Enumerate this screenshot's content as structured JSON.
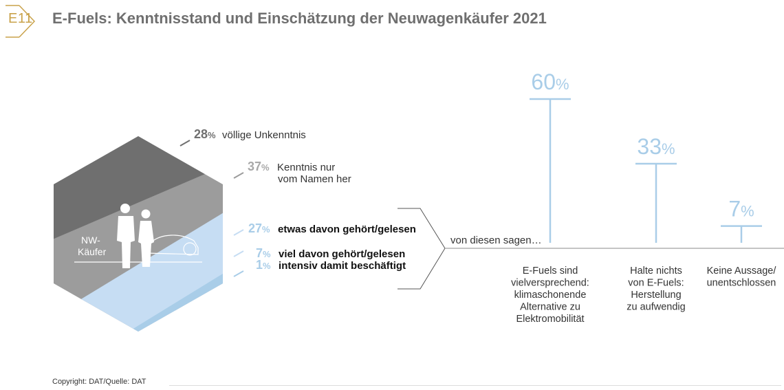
{
  "header": {
    "tag": "E11",
    "title": "E-Fuels: Kenntnisstand und Einschätzung der Neuwagenkäufer 2021"
  },
  "hexagon": {
    "label_line1": "NW-",
    "label_line2": "Käufer"
  },
  "connector_label": "von diesen sagen…",
  "footer": {
    "copyright": "Copyright: DAT/Quelle: DAT"
  },
  "colors": {
    "dark_grey": "#6f6f6f",
    "mid_grey": "#9c9c9c",
    "light_blue": "#c6ddf3",
    "blue": "#a9cde8",
    "gold": "#c9a24a"
  },
  "chart_data": [
    {
      "type": "table",
      "title": "",
      "segments": [
        {
          "value": "28",
          "unit": "%",
          "label_lines": [
            "völlige Unkenntnis"
          ]
        },
        {
          "value": "37",
          "unit": "%",
          "label_lines": [
            "Kenntnis nur",
            "vom Namen her"
          ]
        },
        {
          "value": "27",
          "unit": "%",
          "label_lines": [
            "etwas davon gehört/gelesen"
          ]
        },
        {
          "value": "7",
          "unit": "%",
          "label_lines": [
            "viel davon gehört/gelesen"
          ]
        },
        {
          "value": "1",
          "unit": "%",
          "label_lines": [
            "intensiv damit beschäftigt"
          ]
        }
      ]
    },
    {
      "type": "bar",
      "categories": [
        [
          "E-Fuels sind",
          "vielversprechend:",
          "klimaschonende",
          "Alternative zu",
          "Elektromobilität"
        ],
        [
          "Halte nichts",
          "von E-Fuels:",
          "Herstellung",
          "zu aufwendig"
        ],
        [
          "Keine Aussage/",
          "unentschlossen"
        ]
      ],
      "values": [
        60,
        33,
        7
      ],
      "value_labels": [
        "60",
        "33",
        "7"
      ],
      "unit": "%",
      "ylim": [
        0,
        60
      ]
    }
  ]
}
